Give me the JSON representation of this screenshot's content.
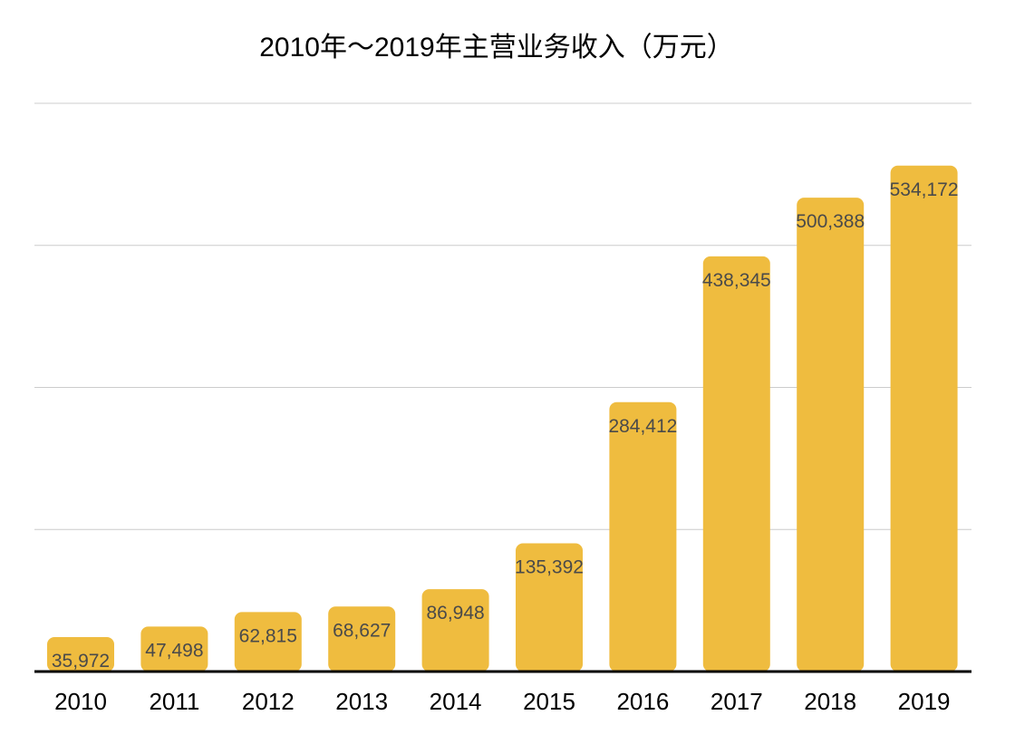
{
  "chart_data": {
    "type": "bar",
    "title": "2010年～2019年主营业务收入（万元）",
    "xlabel": "",
    "ylabel": "",
    "categories": [
      "2010",
      "2011",
      "2012",
      "2013",
      "2014",
      "2015",
      "2016",
      "2017",
      "2018",
      "2019"
    ],
    "values": [
      35972,
      47498,
      62815,
      68627,
      86948,
      135392,
      284412,
      438345,
      500388,
      534172
    ],
    "data_labels": [
      "35,972",
      "47,498",
      "62,815",
      "68,627",
      "86,948",
      "135,392",
      "284,412",
      "438,345",
      "500,388",
      "534,172"
    ],
    "ylim": [
      0,
      600000
    ],
    "gridlines": [
      150000,
      300000,
      450000,
      600000
    ],
    "grid": true,
    "bar_color": "#EFBC3F",
    "label_color": "#4a4a4a"
  }
}
